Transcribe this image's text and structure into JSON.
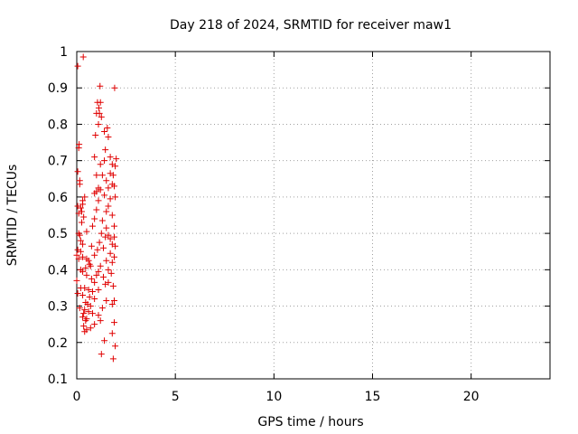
{
  "chart_data": {
    "type": "scatter",
    "title": "Day 218 of 2024, SRMTID for receiver maw1",
    "xlabel": "GPS time / hours",
    "ylabel": "SRMTID / TECUs",
    "xlim": [
      0,
      24
    ],
    "ylim": [
      0.1,
      1.0
    ],
    "xticks": [
      0,
      5,
      10,
      15,
      20
    ],
    "yticks": [
      0.1,
      0.2,
      0.3,
      0.4,
      0.5,
      0.6,
      0.7,
      0.8,
      0.9,
      1.0
    ],
    "xtick_labels": [
      "0",
      "5",
      "10",
      "15",
      "20"
    ],
    "ytick_labels": [
      "0.1",
      "0.2",
      "0.3",
      "0.4",
      "0.5",
      "0.6",
      "0.7",
      "0.8",
      "0.9",
      "1"
    ],
    "grid": true,
    "marker": "+",
    "marker_color": "#e00000",
    "series": [
      {
        "name": "maw1",
        "points": [
          [
            0.05,
            0.96
          ],
          [
            0.33,
            0.985
          ],
          [
            1.18,
            0.905
          ],
          [
            1.92,
            0.9
          ],
          [
            1.05,
            0.86
          ],
          [
            1.2,
            0.86
          ],
          [
            1.12,
            0.845
          ],
          [
            1.0,
            0.83
          ],
          [
            1.15,
            0.83
          ],
          [
            1.25,
            0.82
          ],
          [
            1.1,
            0.8
          ],
          [
            1.55,
            0.79
          ],
          [
            1.4,
            0.78
          ],
          [
            0.95,
            0.77
          ],
          [
            1.6,
            0.765
          ],
          [
            0.12,
            0.745
          ],
          [
            0.1,
            0.735
          ],
          [
            1.45,
            0.73
          ],
          [
            0.9,
            0.71
          ],
          [
            1.4,
            0.7
          ],
          [
            1.7,
            0.71
          ],
          [
            2.0,
            0.705
          ],
          [
            0.05,
            0.67
          ],
          [
            1.2,
            0.69
          ],
          [
            1.8,
            0.69
          ],
          [
            1.95,
            0.685
          ],
          [
            1.0,
            0.66
          ],
          [
            1.3,
            0.66
          ],
          [
            1.7,
            0.665
          ],
          [
            1.85,
            0.66
          ],
          [
            0.15,
            0.645
          ],
          [
            0.15,
            0.635
          ],
          [
            1.5,
            0.645
          ],
          [
            1.8,
            0.635
          ],
          [
            1.9,
            0.63
          ],
          [
            1.1,
            0.625
          ],
          [
            1.2,
            0.62
          ],
          [
            1.6,
            0.625
          ],
          [
            1.0,
            0.615
          ],
          [
            0.9,
            0.61
          ],
          [
            1.4,
            0.605
          ],
          [
            1.95,
            0.6
          ],
          [
            0.4,
            0.6
          ],
          [
            0.3,
            0.59
          ],
          [
            1.7,
            0.595
          ],
          [
            1.1,
            0.59
          ],
          [
            0.3,
            0.58
          ],
          [
            1.6,
            0.575
          ],
          [
            0.05,
            0.575
          ],
          [
            0.2,
            0.57
          ],
          [
            0.25,
            0.56
          ],
          [
            1.0,
            0.565
          ],
          [
            1.5,
            0.56
          ],
          [
            0.1,
            0.555
          ],
          [
            0.35,
            0.545
          ],
          [
            1.8,
            0.55
          ],
          [
            0.9,
            0.54
          ],
          [
            1.3,
            0.535
          ],
          [
            0.25,
            0.53
          ],
          [
            0.8,
            0.52
          ],
          [
            1.9,
            0.52
          ],
          [
            1.5,
            0.515
          ],
          [
            0.5,
            0.505
          ],
          [
            0.1,
            0.5
          ],
          [
            0.15,
            0.495
          ],
          [
            1.25,
            0.5
          ],
          [
            1.45,
            0.49
          ],
          [
            1.6,
            0.495
          ],
          [
            1.7,
            0.485
          ],
          [
            1.9,
            0.49
          ],
          [
            0.2,
            0.48
          ],
          [
            1.15,
            0.475
          ],
          [
            1.8,
            0.47
          ],
          [
            1.95,
            0.465
          ],
          [
            0.3,
            0.47
          ],
          [
            0.75,
            0.465
          ],
          [
            1.35,
            0.46
          ],
          [
            0.05,
            0.455
          ],
          [
            0.2,
            0.45
          ],
          [
            1.05,
            0.455
          ],
          [
            1.7,
            0.445
          ],
          [
            0.0,
            0.44
          ],
          [
            0.3,
            0.435
          ],
          [
            0.9,
            0.44
          ],
          [
            1.9,
            0.435
          ],
          [
            0.1,
            0.43
          ],
          [
            0.5,
            0.43
          ],
          [
            0.6,
            0.425
          ],
          [
            1.5,
            0.425
          ],
          [
            1.8,
            0.42
          ],
          [
            0.65,
            0.415
          ],
          [
            0.7,
            0.41
          ],
          [
            1.2,
            0.41
          ],
          [
            0.45,
            0.405
          ],
          [
            1.6,
            0.4
          ],
          [
            0.2,
            0.4
          ],
          [
            0.3,
            0.395
          ],
          [
            1.1,
            0.395
          ],
          [
            1.75,
            0.39
          ],
          [
            0.5,
            0.385
          ],
          [
            1.0,
            0.385
          ],
          [
            1.35,
            0.38
          ],
          [
            0.75,
            0.375
          ],
          [
            0.0,
            0.37
          ],
          [
            1.6,
            0.365
          ],
          [
            0.9,
            0.365
          ],
          [
            1.45,
            0.36
          ],
          [
            1.85,
            0.355
          ],
          [
            0.2,
            0.35
          ],
          [
            0.4,
            0.35
          ],
          [
            0.6,
            0.345
          ],
          [
            0.8,
            0.34
          ],
          [
            1.1,
            0.345
          ],
          [
            0.05,
            0.335
          ],
          [
            0.3,
            0.33
          ],
          [
            0.65,
            0.325
          ],
          [
            0.9,
            0.32
          ],
          [
            1.5,
            0.315
          ],
          [
            1.9,
            0.315
          ],
          [
            0.45,
            0.31
          ],
          [
            0.55,
            0.305
          ],
          [
            1.8,
            0.305
          ],
          [
            0.7,
            0.3
          ],
          [
            0.15,
            0.295
          ],
          [
            1.3,
            0.295
          ],
          [
            0.4,
            0.29
          ],
          [
            0.6,
            0.285
          ],
          [
            0.35,
            0.28
          ],
          [
            0.8,
            0.28
          ],
          [
            1.1,
            0.275
          ],
          [
            0.3,
            0.27
          ],
          [
            0.5,
            0.265
          ],
          [
            0.45,
            0.26
          ],
          [
            1.2,
            0.26
          ],
          [
            1.9,
            0.255
          ],
          [
            0.9,
            0.25
          ],
          [
            0.35,
            0.245
          ],
          [
            0.7,
            0.24
          ],
          [
            0.5,
            0.235
          ],
          [
            0.4,
            0.23
          ],
          [
            1.8,
            0.225
          ],
          [
            1.4,
            0.205
          ],
          [
            1.95,
            0.19
          ],
          [
            1.25,
            0.168
          ],
          [
            1.85,
            0.155
          ]
        ]
      }
    ]
  }
}
